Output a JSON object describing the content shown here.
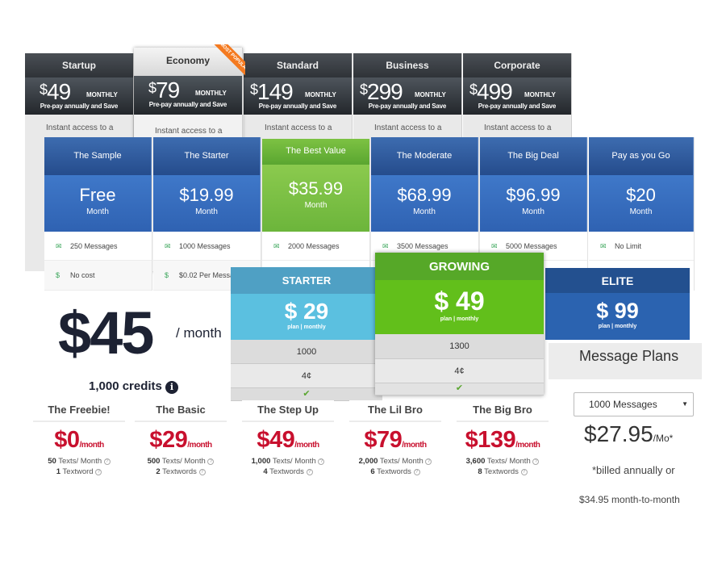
{
  "dark_table": {
    "plans": [
      {
        "name": "Startup",
        "currency": "$",
        "price": "49",
        "period": "MONTHLY",
        "note": "Pre-pay annually and Save",
        "desc": "Instant access to a"
      },
      {
        "name": "Economy",
        "currency": "$",
        "price": "79",
        "period": "MONTHLY",
        "note": "Pre-pay annually and Save",
        "desc": "Instant access to a",
        "ribbon": "MOST POPULAR"
      },
      {
        "name": "Standard",
        "currency": "$",
        "price": "149",
        "period": "MONTHLY",
        "note": "Pre-pay annually and Save",
        "desc": "Instant access to a"
      },
      {
        "name": "Business",
        "currency": "$",
        "price": "299",
        "period": "MONTHLY",
        "note": "Pre-pay annually and Save",
        "desc": "Instant access to a"
      },
      {
        "name": "Corporate",
        "currency": "$",
        "price": "499",
        "period": "MONTHLY",
        "note": "Pre-pay annually and Save",
        "desc": "Instant access to a"
      }
    ]
  },
  "blue_table": {
    "plans": [
      {
        "name": "The Sample",
        "price": "Free",
        "period": "Month",
        "messages": "250 Messages",
        "cost": "No cost"
      },
      {
        "name": "The Starter",
        "price": "$19.99",
        "period": "Month",
        "messages": "1000 Messages",
        "cost": "$0.02 Per Messa"
      },
      {
        "name": "The Best Value",
        "price": "$35.99",
        "period": "Month",
        "messages": "2000 Messages"
      },
      {
        "name": "The Moderate",
        "price": "$68.99",
        "period": "Month",
        "messages": "3500 Messages"
      },
      {
        "name": "The Big Deal",
        "price": "$96.99",
        "period": "Month",
        "messages": "5000 Messages"
      },
      {
        "name": "Pay as you Go",
        "price": "$20",
        "period": "Month",
        "messages": "No Limit"
      }
    ]
  },
  "tier_table": {
    "starter": {
      "name": "STARTER",
      "currency": "$",
      "price": "29",
      "sub": "plan | monthly",
      "row1": "1000",
      "row2": "4¢"
    },
    "growing": {
      "name": "GROWING",
      "currency": "$",
      "price": "49",
      "sub": "plan | monthly",
      "row1": "1300",
      "row2": "4¢"
    },
    "elite": {
      "name": "ELITE",
      "currency": "$",
      "price": "99",
      "sub": "plan | monthly"
    }
  },
  "credits_block": {
    "currency": "$",
    "price": "45",
    "period": "/ month",
    "credits": "1,000 credits",
    "info_icon": "i"
  },
  "textword_plans": [
    {
      "name": "The Freebie!",
      "price": "$0",
      "period": "/month",
      "texts": "50",
      "texts_label": "Texts/ Month",
      "words": "1",
      "words_label": "Textword"
    },
    {
      "name": "The Basic",
      "price": "$29",
      "period": "/month",
      "texts": "500",
      "texts_label": "Texts/ Month",
      "words": "2",
      "words_label": "Textwords"
    },
    {
      "name": "The Step Up",
      "price": "$49",
      "period": "/month",
      "texts": "1,000",
      "texts_label": "Texts/ Month",
      "words": "4",
      "words_label": "Textwords"
    },
    {
      "name": "The Lil Bro",
      "price": "$79",
      "period": "/month",
      "texts": "2,000",
      "texts_label": "Texts/ Month",
      "words": "6",
      "words_label": "Textwords"
    },
    {
      "name": "The Big Bro",
      "price": "$139",
      "period": "/month",
      "texts": "3,600",
      "texts_label": "Texts/ Month",
      "words": "8",
      "words_label": "Textwords"
    }
  ],
  "message_plans": {
    "title": "Message Plans",
    "select_value": "1000 Messages",
    "price": "$27.95",
    "period": "/Mo*",
    "note1": "*billed annually or",
    "note2": "$34.95 month-to-month"
  },
  "icons": {
    "help": "?",
    "check": "✔",
    "envelope": "✉",
    "dollar": "$",
    "chevron": "▼"
  },
  "colors": {
    "price_red": "#c8102e",
    "green": "#62bf1b",
    "blue": "#2f62b2",
    "ribbon_orange": "#f47a20"
  }
}
